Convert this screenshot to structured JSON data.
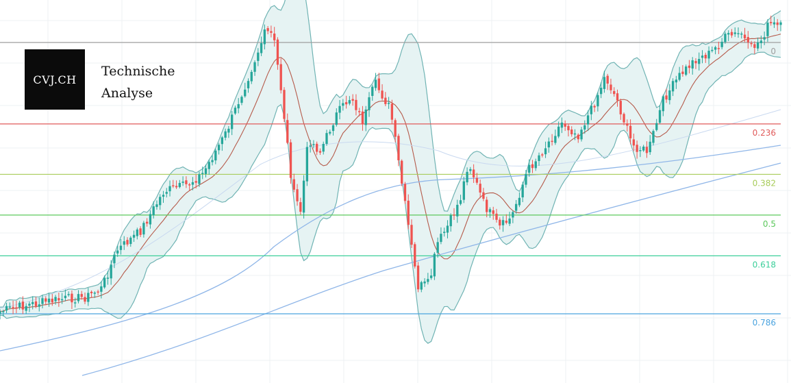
{
  "brand": {
    "logo_text": "CVJ.CH",
    "title_line1": "Technische",
    "title_line2": "Analyse"
  },
  "chart_data": {
    "type": "candlestick",
    "title": "",
    "xlabel": "",
    "ylabel": "",
    "grid": true,
    "fibonacci_levels": [
      {
        "label": "0",
        "ratio": 0,
        "color": "#9e9e9e"
      },
      {
        "label": "0.236",
        "ratio": 0.236,
        "color": "#e05a5a"
      },
      {
        "label": "0.382",
        "ratio": 0.382,
        "color": "#a8cc5a"
      },
      {
        "label": "0.5",
        "ratio": 0.5,
        "color": "#5cc85c"
      },
      {
        "label": "0.618",
        "ratio": 0.618,
        "color": "#3ccf9a"
      },
      {
        "label": "0.786",
        "ratio": 0.786,
        "color": "#4aa3df"
      }
    ],
    "price_path": [
      [
        0,
        0.905
      ],
      [
        0.03,
        0.888
      ],
      [
        0.06,
        0.875
      ],
      [
        0.09,
        0.865
      ],
      [
        0.11,
        0.862
      ],
      [
        0.13,
        0.835
      ],
      [
        0.15,
        0.72
      ],
      [
        0.18,
        0.66
      ],
      [
        0.21,
        0.54
      ],
      [
        0.24,
        0.52
      ],
      [
        0.26,
        0.485
      ],
      [
        0.29,
        0.36
      ],
      [
        0.32,
        0.18
      ],
      [
        0.34,
        0.055
      ],
      [
        0.35,
        0.065
      ],
      [
        0.36,
        0.23
      ],
      [
        0.375,
        0.54
      ],
      [
        0.385,
        0.6
      ],
      [
        0.395,
        0.38
      ],
      [
        0.41,
        0.42
      ],
      [
        0.43,
        0.31
      ],
      [
        0.45,
        0.25
      ],
      [
        0.465,
        0.33
      ],
      [
        0.48,
        0.21
      ],
      [
        0.5,
        0.29
      ],
      [
        0.52,
        0.6
      ],
      [
        0.535,
        0.83
      ],
      [
        0.55,
        0.82
      ],
      [
        0.56,
        0.7
      ],
      [
        0.575,
        0.64
      ],
      [
        0.59,
        0.56
      ],
      [
        0.6,
        0.45
      ],
      [
        0.62,
        0.58
      ],
      [
        0.64,
        0.65
      ],
      [
        0.655,
        0.62
      ],
      [
        0.675,
        0.48
      ],
      [
        0.7,
        0.4
      ],
      [
        0.72,
        0.33
      ],
      [
        0.74,
        0.37
      ],
      [
        0.76,
        0.28
      ],
      [
        0.775,
        0.19
      ],
      [
        0.79,
        0.26
      ],
      [
        0.81,
        0.4
      ],
      [
        0.83,
        0.42
      ],
      [
        0.85,
        0.26
      ],
      [
        0.87,
        0.19
      ],
      [
        0.89,
        0.14
      ],
      [
        0.91,
        0.12
      ],
      [
        0.93,
        0.07
      ],
      [
        0.95,
        0.06
      ],
      [
        0.96,
        0.11
      ],
      [
        0.975,
        0.08
      ],
      [
        0.985,
        0.03
      ],
      [
        1.0,
        0.04
      ]
    ],
    "colors": {
      "up": "#26a69a",
      "down": "#ef5350",
      "band_fill": "#e6f3f3",
      "band_line": "#6fb3b3",
      "basis_line": "#b55a4a",
      "ma_long": "#8fb6e8",
      "ma_mid": "#c9d9f0",
      "grid": "#eef0f3"
    }
  }
}
